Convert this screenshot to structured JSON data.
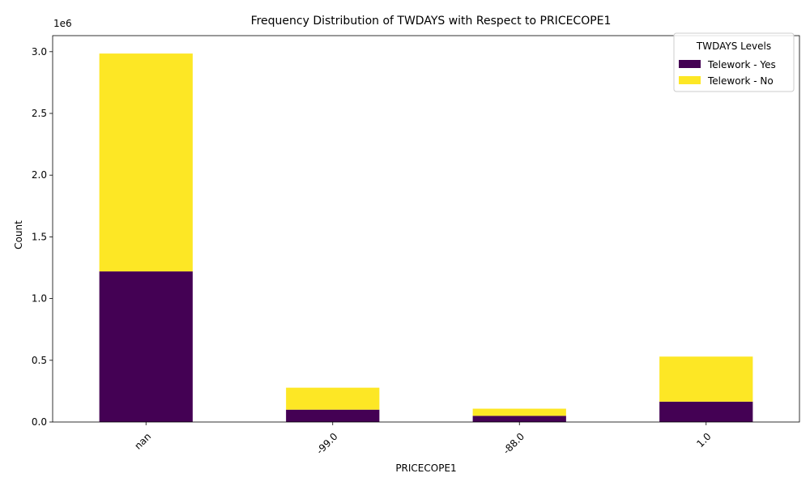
{
  "chart_data": {
    "type": "bar",
    "stacked": true,
    "title": "Frequency Distribution of TWDAYS with Respect to PRICECOPE1",
    "xlabel": "PRICECOPE1",
    "ylabel": "Count",
    "offset_text": "1e6",
    "categories": [
      "nan",
      "-99.0",
      "-88.0",
      "1.0"
    ],
    "series": [
      {
        "name": "Telework - Yes",
        "color": "#440154",
        "values": [
          1220000,
          100000,
          50000,
          165000
        ]
      },
      {
        "name": "Telework - No",
        "color": "#fde725",
        "values": [
          1765000,
          178000,
          58000,
          365000
        ]
      }
    ],
    "ylim": [
      0,
      3130000
    ],
    "yticks": [
      0,
      500000,
      1000000,
      1500000,
      2000000,
      2500000,
      3000000
    ],
    "ytick_labels": [
      "0.0",
      "0.5",
      "1.0",
      "1.5",
      "2.0",
      "2.5",
      "3.0"
    ],
    "legend": {
      "title": "TWDAYS Levels",
      "position": "top-right"
    },
    "grid": false
  }
}
